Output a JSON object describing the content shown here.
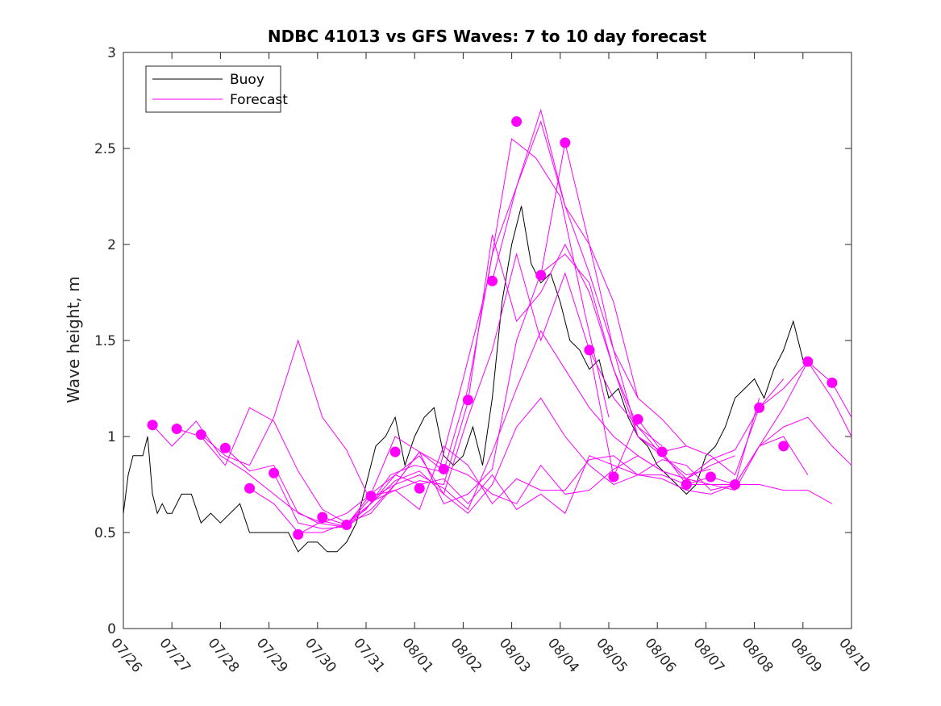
{
  "chart_data": {
    "type": "line",
    "title": "NDBC 41013 vs GFS Waves: 7 to 10 day forecast",
    "xlabel": "",
    "ylabel": "Wave height, m",
    "x_tick_labels": [
      "07/26",
      "07/27",
      "07/28",
      "07/29",
      "07/30",
      "07/31",
      "08/01",
      "08/02",
      "08/03",
      "08/04",
      "08/05",
      "08/06",
      "08/07",
      "08/08",
      "08/09",
      "08/10"
    ],
    "x_range_days": [
      0,
      15
    ],
    "ylim": [
      0,
      3
    ],
    "y_ticks": [
      "0",
      "0.5",
      "1",
      "1.5",
      "2",
      "2.5",
      "3"
    ],
    "y_tick_values": [
      0,
      0.5,
      1,
      1.5,
      2,
      2.5,
      3
    ],
    "grid": false,
    "legend": {
      "placement": "top-left",
      "entries": [
        {
          "label": "Buoy",
          "color": "#000000"
        },
        {
          "label": "Forecast",
          "color": "#ff00ff"
        }
      ]
    },
    "colors": {
      "buoy": "#000000",
      "forecast": "#ff00ff"
    },
    "series": [
      {
        "name": "Buoy",
        "color": "#000000",
        "x": [
          0,
          0.1,
          0.2,
          0.3,
          0.4,
          0.5,
          0.6,
          0.7,
          0.8,
          0.9,
          1.0,
          1.2,
          1.4,
          1.6,
          1.8,
          2.0,
          2.2,
          2.4,
          2.6,
          2.8,
          3.0,
          3.2,
          3.4,
          3.6,
          3.8,
          4.0,
          4.2,
          4.4,
          4.6,
          4.8,
          5.0,
          5.2,
          5.4,
          5.6,
          5.8,
          6.0,
          6.2,
          6.4,
          6.6,
          6.8,
          7.0,
          7.2,
          7.4,
          7.6,
          7.8,
          8.0,
          8.2,
          8.4,
          8.6,
          8.8,
          9.0,
          9.2,
          9.4,
          9.6,
          9.8,
          10.0,
          10.2,
          10.4,
          10.6,
          10.8,
          11.0,
          11.2,
          11.4,
          11.6,
          11.8,
          12.0,
          12.2,
          12.4,
          12.6,
          12.8,
          13.0,
          13.2,
          13.4,
          13.6,
          13.8,
          14.0,
          14.2
        ],
        "y": [
          0.6,
          0.8,
          0.9,
          0.9,
          0.9,
          1.0,
          0.7,
          0.6,
          0.65,
          0.6,
          0.6,
          0.7,
          0.7,
          0.55,
          0.6,
          0.55,
          0.6,
          0.65,
          0.5,
          0.5,
          0.5,
          0.5,
          0.5,
          0.4,
          0.45,
          0.45,
          0.4,
          0.4,
          0.45,
          0.55,
          0.75,
          0.95,
          1.0,
          1.1,
          0.85,
          1.0,
          1.1,
          1.15,
          0.9,
          0.85,
          0.9,
          1.05,
          0.85,
          1.2,
          1.7,
          2.0,
          2.2,
          1.9,
          1.8,
          1.85,
          1.7,
          1.5,
          1.45,
          1.35,
          1.4,
          1.2,
          1.25,
          1.1,
          1.0,
          0.95,
          0.85,
          0.8,
          0.75,
          0.7,
          0.75,
          0.9,
          0.95,
          1.05,
          1.2,
          1.25,
          1.3,
          1.2,
          1.35,
          1.45,
          1.6,
          1.4,
          1.4
        ]
      },
      {
        "name": "",
        "color": "#ff00ff",
        "x": [
          0.6,
          1.0,
          1.5,
          2.0,
          2.5,
          3.0,
          3.5,
          4.0,
          4.5,
          5.0,
          5.5,
          6.0,
          6.5,
          7.0,
          7.5,
          8.0,
          8.5,
          9.0,
          9.5,
          10.0
        ],
        "y": [
          1.06,
          0.95,
          1.08,
          0.9,
          0.82,
          0.72,
          0.62,
          0.55,
          0.53,
          0.62,
          0.8,
          0.85,
          0.82,
          1.3,
          1.8,
          2.55,
          2.45,
          2.25,
          1.65,
          1.1
        ]
      },
      {
        "name": "",
        "color": "#ff00ff",
        "x": [
          1.1,
          1.6,
          2.1,
          2.6,
          3.1,
          3.6,
          4.1,
          4.6,
          5.1,
          5.6,
          6.1,
          6.6,
          7.1,
          7.6,
          8.1,
          8.6,
          9.1,
          9.6,
          10.1,
          10.6
        ],
        "y": [
          1.04,
          1.0,
          0.85,
          1.15,
          1.08,
          0.82,
          0.62,
          0.55,
          0.6,
          0.75,
          0.92,
          0.82,
          1.25,
          1.95,
          2.3,
          2.7,
          2.2,
          2.0,
          1.7,
          1.2
        ]
      },
      {
        "name": "",
        "color": "#ff00ff",
        "x": [
          1.6,
          2.1,
          2.6,
          3.1,
          3.6,
          4.1,
          4.6,
          5.1,
          5.6,
          6.1,
          6.6,
          7.1,
          7.6,
          8.1,
          8.6,
          9.1,
          9.6,
          10.1,
          10.6,
          11.1
        ],
        "y": [
          1.01,
          0.9,
          0.85,
          1.1,
          1.5,
          1.1,
          0.93,
          0.66,
          0.72,
          0.77,
          0.75,
          1.18,
          2.05,
          1.6,
          1.75,
          2.0,
          1.75,
          1.35,
          1.05,
          0.95
        ]
      },
      {
        "name": "",
        "color": "#ff00ff",
        "x": [
          2.1,
          2.6,
          3.1,
          3.6,
          4.1,
          4.6,
          5.1,
          5.6,
          6.1,
          6.6,
          7.1,
          7.6,
          8.1,
          8.6,
          9.1,
          9.6,
          10.1,
          10.6,
          11.1,
          11.6
        ],
        "y": [
          0.94,
          0.82,
          0.85,
          0.6,
          0.55,
          0.6,
          0.7,
          1.0,
          0.92,
          0.65,
          0.7,
          0.83,
          1.5,
          1.85,
          1.95,
          1.8,
          1.35,
          1.0,
          0.92,
          0.95
        ]
      },
      {
        "name": "",
        "color": "#ff00ff",
        "x": [
          2.6,
          3.1,
          3.6,
          4.1,
          4.6,
          5.1,
          5.6,
          6.1,
          6.6,
          7.1,
          7.6,
          8.1,
          8.6,
          9.1,
          9.6,
          10.1,
          10.6,
          11.1,
          11.6,
          12.1
        ],
        "y": [
          0.73,
          0.65,
          0.5,
          0.5,
          0.55,
          0.65,
          0.8,
          0.9,
          0.7,
          1.1,
          1.45,
          1.95,
          1.5,
          1.85,
          1.45,
          1.2,
          1.05,
          0.9,
          0.8,
          0.83
        ]
      },
      {
        "name": "",
        "color": "#ff00ff",
        "x": [
          3.1,
          3.6,
          4.1,
          4.6,
          5.1,
          5.6,
          6.1,
          6.6,
          7.1,
          7.6,
          8.1,
          8.6,
          9.1,
          9.6,
          10.1,
          10.6,
          11.1,
          11.6,
          12.1,
          12.6
        ],
        "y": [
          0.81,
          0.55,
          0.52,
          0.53,
          0.62,
          0.75,
          0.8,
          0.73,
          0.62,
          0.92,
          1.25,
          1.55,
          1.35,
          1.15,
          1.0,
          0.9,
          0.82,
          0.78,
          0.85,
          0.9
        ]
      },
      {
        "name": "",
        "color": "#ff00ff",
        "x": [
          3.6,
          4.1,
          4.6,
          5.1,
          5.6,
          6.1,
          6.6,
          7.1,
          7.6,
          8.1,
          8.6,
          9.1,
          9.6,
          10.1,
          10.6,
          11.1,
          11.6,
          12.1,
          12.6,
          13.1
        ],
        "y": [
          0.49,
          0.56,
          0.53,
          0.65,
          0.77,
          0.82,
          0.7,
          0.6,
          0.75,
          1.05,
          1.2,
          1.0,
          0.85,
          0.75,
          0.8,
          0.88,
          0.85,
          0.72,
          0.75,
          1.2
        ]
      },
      {
        "name": "",
        "color": "#ff00ff",
        "x": [
          4.1,
          4.6,
          5.1,
          5.6,
          6.1,
          6.6,
          7.1,
          7.6,
          8.1,
          8.6,
          9.1,
          9.6,
          10.1,
          10.6,
          11.1,
          11.6,
          12.1,
          12.6,
          13.1,
          13.6
        ],
        "y": [
          0.58,
          0.54,
          0.68,
          0.75,
          0.92,
          0.85,
          0.8,
          0.7,
          0.65,
          0.85,
          0.7,
          0.72,
          0.83,
          0.9,
          0.82,
          0.78,
          0.88,
          0.93,
          1.15,
          1.3
        ]
      },
      {
        "name": "",
        "color": "#ff00ff",
        "x": [
          4.6,
          5.1,
          5.6,
          6.1,
          6.6,
          7.1,
          7.6,
          8.1,
          8.6,
          9.1,
          9.6,
          10.1,
          10.6,
          11.1,
          11.6,
          12.1,
          12.6,
          13.1,
          13.6,
          14.1
        ],
        "y": [
          0.54,
          0.7,
          0.8,
          0.75,
          0.78,
          0.65,
          0.8,
          0.62,
          0.7,
          0.6,
          0.9,
          0.85,
          0.8,
          0.8,
          0.75,
          0.75,
          0.75,
          0.95,
          1.0,
          0.8
        ]
      },
      {
        "name": "",
        "color": "#ff00ff",
        "x": [
          5.1,
          5.6,
          6.1,
          6.6,
          7.1,
          7.6,
          8.1,
          8.6,
          9.1,
          9.6,
          10.1,
          10.6,
          11.1,
          11.6,
          12.1,
          12.6,
          13.1,
          13.6,
          14.1,
          14.6
        ],
        "y": [
          0.69,
          0.72,
          0.62,
          0.95,
          0.85,
          0.65,
          0.78,
          0.72,
          0.72,
          0.88,
          0.9,
          0.8,
          0.78,
          0.72,
          0.7,
          0.75,
          0.75,
          0.72,
          0.72,
          0.65
        ]
      },
      {
        "name": "",
        "color": "#ff00ff",
        "x": [
          7.6,
          8.1,
          8.6,
          9.1,
          9.6,
          10.1,
          10.6,
          11.1,
          11.6,
          12.1,
          12.6,
          13.1,
          13.6,
          14.1,
          14.6,
          15.0
        ],
        "y": [
          1.81,
          2.3,
          2.64,
          2.2,
          1.85,
          1.45,
          1.0,
          0.9,
          0.78,
          0.75,
          0.72,
          0.95,
          1.05,
          1.1,
          0.95,
          0.85
        ]
      },
      {
        "name": "",
        "color": "#ff00ff",
        "x": [
          8.6,
          9.1,
          9.6,
          10.1,
          10.6,
          11.1,
          11.6,
          12.1,
          12.6,
          13.1,
          13.6,
          14.1,
          14.6,
          15.0
        ],
        "y": [
          1.84,
          2.53,
          2.0,
          1.45,
          1.2,
          1.09,
          0.95,
          0.9,
          0.8,
          1.15,
          1.25,
          1.39,
          1.2,
          1.0
        ]
      },
      {
        "name": "",
        "color": "#ff00ff",
        "x": [
          9.6,
          10.1,
          10.6,
          11.1,
          11.6,
          12.1,
          12.6,
          13.1,
          13.6,
          14.1,
          14.6,
          15.0
        ],
        "y": [
          1.45,
          0.79,
          1.09,
          0.92,
          0.75,
          0.79,
          0.75,
          0.95,
          1.15,
          1.39,
          1.28,
          1.1
        ]
      }
    ],
    "forecast_markers": {
      "name": "",
      "color": "#ff00ff",
      "x": [
        0.6,
        1.1,
        1.6,
        2.1,
        2.6,
        3.1,
        3.6,
        4.1,
        4.6,
        5.1,
        5.6,
        6.1,
        6.6,
        7.1,
        7.6,
        8.1,
        8.6,
        9.1,
        9.6,
        10.1,
        10.6,
        11.1,
        11.6,
        12.1,
        12.6,
        13.1,
        13.6,
        14.1,
        14.6
      ],
      "y": [
        1.06,
        1.04,
        1.01,
        0.94,
        0.73,
        0.81,
        0.49,
        0.58,
        0.54,
        0.69,
        0.92,
        0.73,
        0.83,
        1.19,
        1.81,
        2.64,
        1.84,
        2.53,
        1.45,
        0.79,
        1.09,
        0.92,
        0.75,
        0.79,
        0.75,
        1.15,
        0.95,
        1.39,
        1.28
      ]
    }
  }
}
